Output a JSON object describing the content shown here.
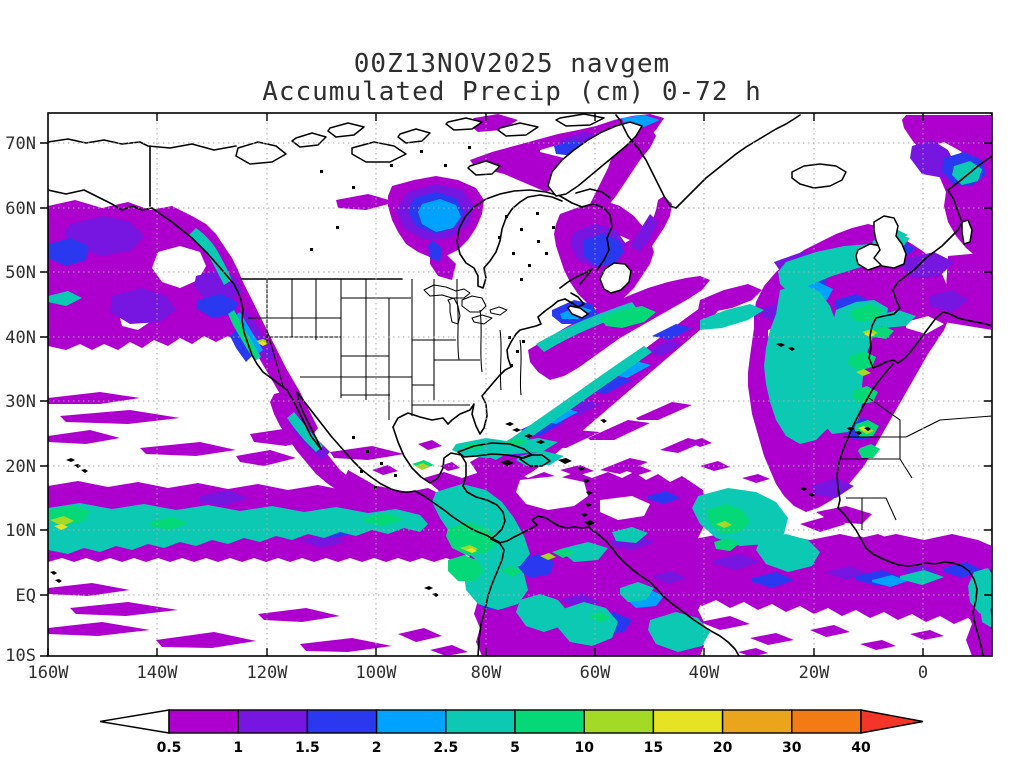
{
  "title": {
    "line1": "00Z13NOV2025 navgem",
    "line2": "Accumulated Precip (cm) 0-72 h"
  },
  "map": {
    "background": "#ffffff",
    "coastline_color": "#000000",
    "grid_color": "#aaaaaa",
    "frame_color": "#000000"
  },
  "axes": {
    "lat_ticks": [
      "70N",
      "60N",
      "50N",
      "40N",
      "30N",
      "20N",
      "10N",
      "EQ",
      "10S"
    ],
    "lon_ticks": [
      "160W",
      "140W",
      "120W",
      "100W",
      "80W",
      "60W",
      "40W",
      "20W",
      "0"
    ]
  },
  "colorbar": {
    "levels": [
      "0.5",
      "1",
      "1.5",
      "2",
      "2.5",
      "5",
      "10",
      "15",
      "20",
      "30",
      "40"
    ],
    "colors": [
      "#ad00cf",
      "#7616e0",
      "#2a39f0",
      "#00a2ff",
      "#0cc9b4",
      "#05d977",
      "#a2da26",
      "#e6e324",
      "#eaa51c",
      "#f27b15"
    ],
    "below_color": "#ffffff",
    "above_color": "#f4362a"
  },
  "chart_data": {
    "type": "heatmap",
    "title": "00Z13NOV2025 navgem — Accumulated Precip (cm) 0-72 h",
    "units": "cm",
    "contour_levels": [
      0.5,
      1,
      1.5,
      2,
      2.5,
      5,
      10,
      15,
      20,
      30,
      40
    ],
    "x_axis_ticks": [
      "160W",
      "140W",
      "120W",
      "100W",
      "80W",
      "60W",
      "40W",
      "20W",
      "0"
    ],
    "y_axis_ticks": [
      "70N",
      "60N",
      "50N",
      "40N",
      "30N",
      "20N",
      "10N",
      "EQ",
      "10S"
    ],
    "legend_position": "bottom",
    "grid": "dotted"
  }
}
